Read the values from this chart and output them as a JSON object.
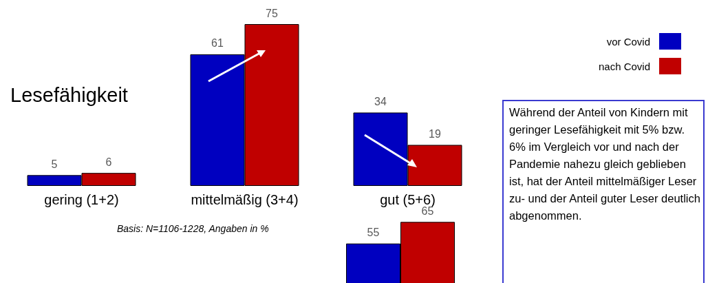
{
  "chart_data": [
    {
      "type": "bar",
      "title": "Lesefähigkeit",
      "categories": [
        "gering (1+2)",
        "mittelmäßig (3+4)",
        "gut (5+6)"
      ],
      "series": [
        {
          "name": "vor Covid",
          "color": "#0000c0",
          "values": [
            5,
            61,
            34
          ]
        },
        {
          "name": "nach Covid",
          "color": "#c00000",
          "values": [
            6,
            75,
            19
          ]
        }
      ],
      "data_labels": true,
      "legend": "top right",
      "annotations": [
        "Basis: N=1106-1228, Angaben in %",
        "Während der Anteil von Kindern mit geringer Lesefähigkeit mit 5% bzw. 6% im Vergleich vor und nach der Pandemie nahezu gleich geblieben ist, hat der Anteil mittelmäßiger Leser zu- und der Anteil guter Leser deutlich abgenommen."
      ]
    },
    {
      "type": "bar",
      "categories": [
        null
      ],
      "series": [
        {
          "color": "#0000c0",
          "values": [
            55
          ]
        },
        {
          "color": "#c00000",
          "values": [
            65
          ]
        }
      ],
      "data_labels": true
    }
  ]
}
